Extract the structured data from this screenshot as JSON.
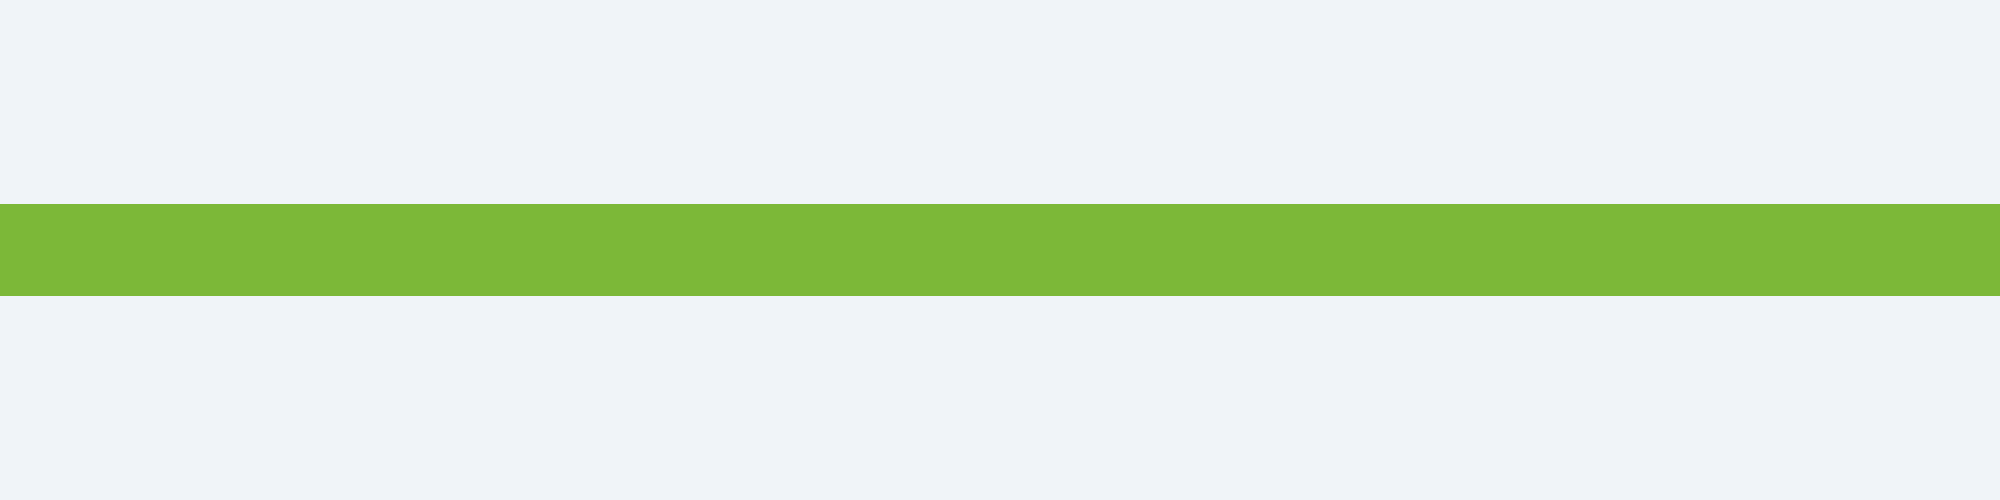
{
  "colors": {
    "background": "#F0F4F8",
    "progress_fill": "#7CB838"
  },
  "progress_bar": {
    "value_percent": 100
  }
}
